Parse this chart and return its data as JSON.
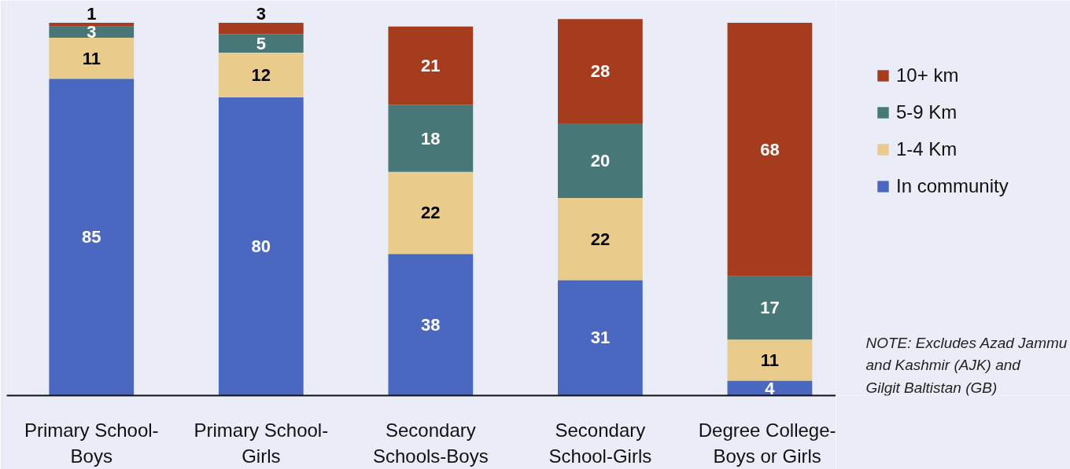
{
  "chart_data": {
    "type": "bar",
    "stacked": true,
    "data_labels": true,
    "legend": "right",
    "tick_labels": "x",
    "categories": [
      "Primary School-Boys",
      "Primary School-Girls",
      "Secondary Schools-Boys",
      "Secondary School-Girls",
      "Degree College-Boys or Girls"
    ],
    "series": [
      {
        "name": "In community",
        "color": "#4a68bf",
        "values": [
          85,
          80,
          38,
          31,
          4
        ]
      },
      {
        "name": "1-4 Km",
        "color": "#e9cb8c",
        "values": [
          11,
          12,
          22,
          22,
          11
        ]
      },
      {
        "name": "5-9 Km",
        "color": "#487777",
        "values": [
          3,
          5,
          18,
          20,
          17
        ]
      },
      {
        "name": "10+ km",
        "color": "#a63c1e",
        "values": [
          1,
          3,
          21,
          28,
          68
        ]
      }
    ],
    "ylim": [
      0,
      106
    ],
    "annotations": [
      "NOTE: Excludes Azad Jammu and Kashmir (AJK) and Gilgit Baltistan (GB)"
    ]
  }
}
